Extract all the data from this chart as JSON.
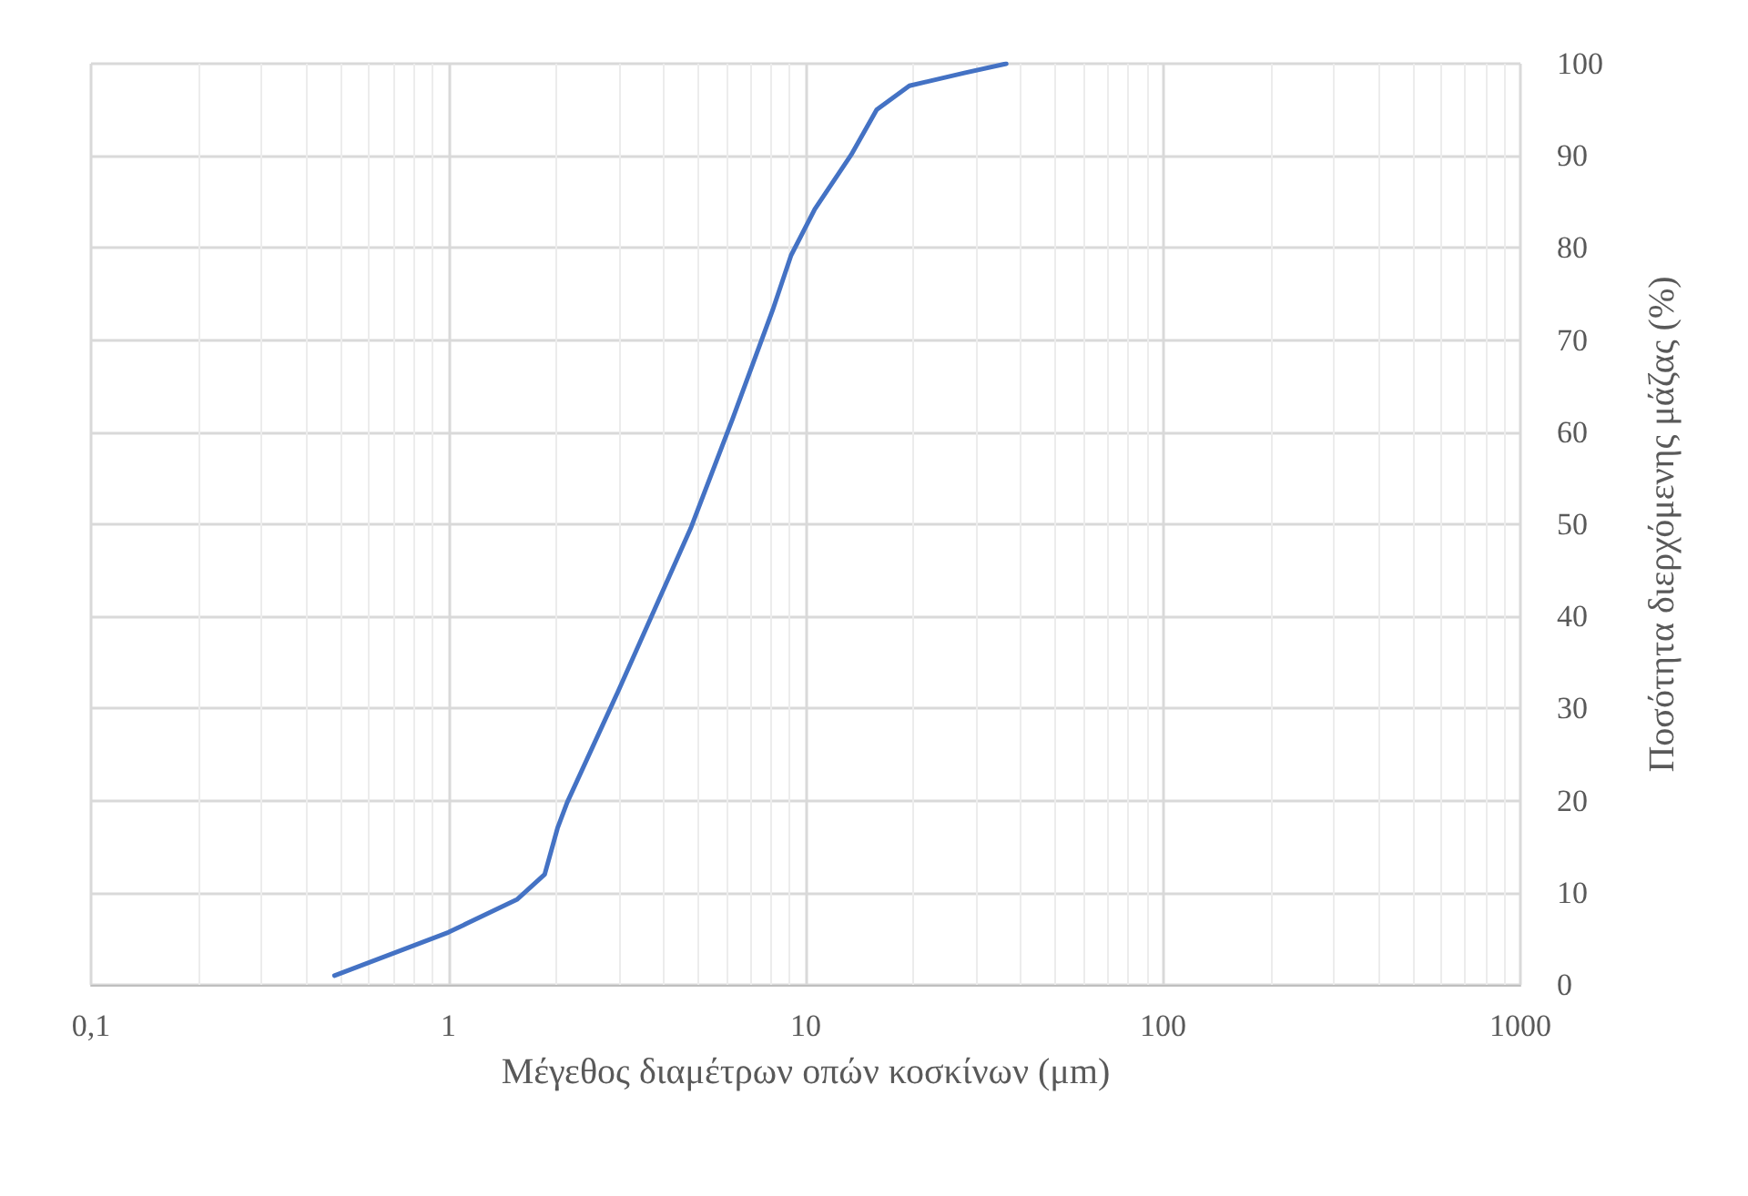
{
  "chart_data": {
    "type": "line",
    "xlabel": "Μέγεθος διαμέτρων οπών κοσκίνων (μm)",
    "ylabel": "Ποσότητα διερχόμενης μάζας (%)",
    "log": "x",
    "grid": true,
    "marker": "none",
    "line_style": "solid",
    "xlim": [
      0.1,
      1000
    ],
    "xticks": [
      {
        "value": 0.1,
        "label": "0,1"
      },
      1,
      10,
      100,
      1000
    ],
    "ylim": [
      0,
      100
    ],
    "yticks": [
      0,
      10,
      20,
      30,
      40,
      50,
      60,
      70,
      80,
      90,
      100
    ],
    "series": [
      {
        "color": "#4472c4",
        "x": [
          0.48,
          1,
          1.56,
          1.86,
          2.02,
          2.15,
          2.98,
          4.77,
          6.25,
          8.09,
          9.1,
          10.6,
          13.4,
          15.8,
          19.5,
          27.8,
          36.4
        ],
        "values": [
          1,
          5.7,
          9.3,
          12,
          17,
          19.8,
          31.8,
          49.6,
          61.5,
          73.3,
          79.2,
          84.2,
          90.1,
          95,
          97.6,
          99,
          100
        ]
      }
    ]
  }
}
